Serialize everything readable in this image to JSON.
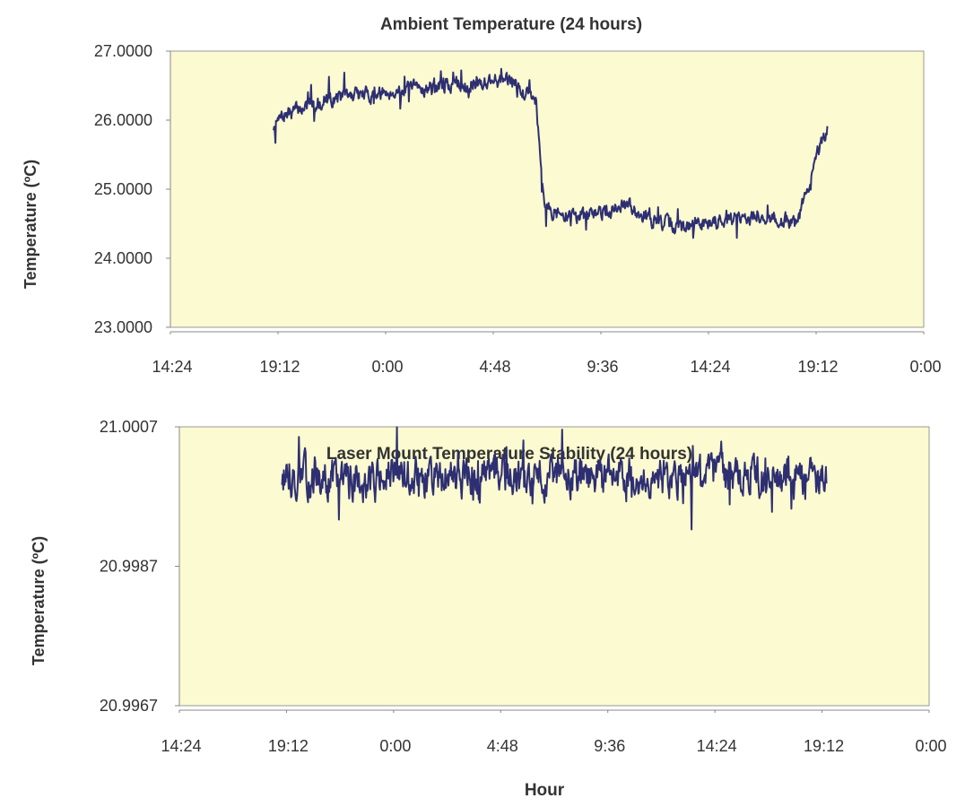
{
  "colors": {
    "plot_bg": "#fbfad0",
    "series": "#2e2f72",
    "axis": "#888888"
  },
  "chart_data": [
    {
      "type": "line",
      "title": "Ambient Temperature  (24 hours)",
      "xlabel": "",
      "ylabel": "Temperature (ºC)",
      "x_tick_labels": [
        "14:24",
        "19:12",
        "0:00",
        "4:48",
        "9:36",
        "14:24",
        "19:12",
        "0:00"
      ],
      "x_hours_range": [
        0,
        33.6
      ],
      "ylim": [
        23.0,
        27.0
      ],
      "y_tick_labels": [
        "23.0000",
        "24.0000",
        "25.0000",
        "26.0000",
        "27.0000"
      ],
      "y_ticks": [
        23.0,
        24.0,
        25.0,
        26.0,
        27.0
      ],
      "grid": false,
      "series": [
        {
          "x_hours": [
            4.6,
            5.0,
            6.0,
            7.0,
            8.0,
            9.0,
            10.0,
            11.0,
            12.0,
            13.0,
            14.0,
            14.4,
            15.0,
            15.5,
            16.0,
            16.3,
            16.7,
            17.5,
            18.5,
            19.5,
            20.5,
            21.5,
            22.5,
            23.5,
            24.5,
            25.5,
            26.5,
            27.5,
            28.0,
            28.5,
            29.0,
            29.3
          ],
          "values": [
            25.9,
            26.05,
            26.2,
            26.3,
            26.35,
            26.38,
            26.42,
            26.45,
            26.5,
            26.52,
            26.55,
            26.6,
            26.55,
            26.5,
            26.4,
            26.3,
            24.75,
            24.6,
            24.62,
            24.7,
            24.75,
            24.55,
            24.45,
            24.5,
            24.55,
            24.6,
            24.6,
            24.55,
            24.55,
            25.1,
            25.6,
            25.78
          ]
        }
      ]
    },
    {
      "type": "line",
      "title": "Laser Mount Temperature Stability  (24 hours)",
      "xlabel": "Hour",
      "ylabel": "Temperature (ºC)",
      "x_tick_labels": [
        "14:24",
        "19:12",
        "0:00",
        "4:48",
        "9:36",
        "14:24",
        "19:12",
        "0:00"
      ],
      "x_hours_range": [
        0,
        33.6
      ],
      "ylim": [
        20.9967,
        21.0007
      ],
      "y_tick_labels": [
        "20.9967",
        "20.9987",
        "21.0007"
      ],
      "y_ticks": [
        20.9967,
        20.9987,
        21.0007
      ],
      "grid": false,
      "series": [
        {
          "x_hours": [
            4.6,
            8.0,
            12.0,
            16.0,
            20.0,
            24.0,
            28.0,
            29.0
          ],
          "values": [
            20.99998,
            20.99995,
            20.99998,
            20.99996,
            20.99998,
            20.99998,
            20.99996,
            20.99998
          ]
        }
      ]
    }
  ]
}
